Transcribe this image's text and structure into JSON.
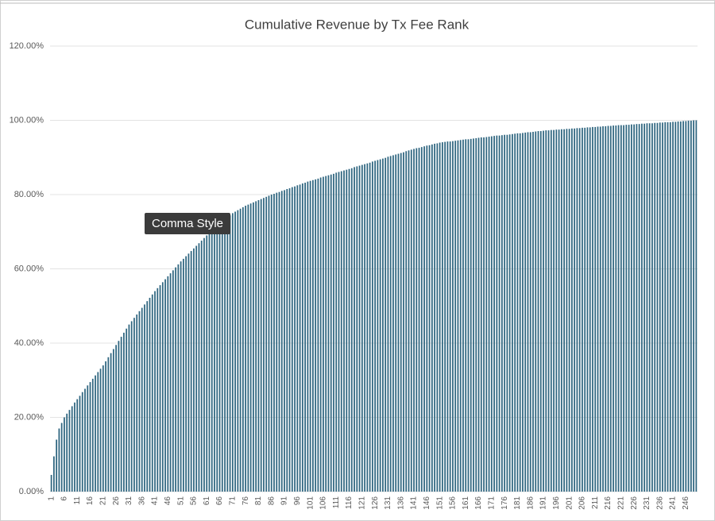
{
  "tooltip": "Comma Style",
  "chart_data": {
    "type": "bar",
    "title": "Cumulative Revenue by Tx Fee Rank",
    "color": "#2f6680",
    "grid": true,
    "ylim": [
      0,
      120
    ],
    "yticks": [
      {
        "value": 0,
        "label": "0.00%"
      },
      {
        "value": 20,
        "label": "20.00%"
      },
      {
        "value": 40,
        "label": "40.00%"
      },
      {
        "value": 60,
        "label": "60.00%"
      },
      {
        "value": 80,
        "label": "80.00%"
      },
      {
        "value": 100,
        "label": "100.00%"
      },
      {
        "value": 120,
        "label": "120.00%"
      }
    ],
    "categories": [
      1,
      null,
      null,
      null,
      null,
      6,
      null,
      null,
      null,
      null,
      11,
      null,
      null,
      null,
      null,
      16,
      null,
      null,
      null,
      null,
      21,
      null,
      null,
      null,
      null,
      26,
      null,
      null,
      null,
      null,
      31,
      null,
      null,
      null,
      null,
      36,
      null,
      null,
      null,
      null,
      41,
      null,
      null,
      null,
      null,
      46,
      null,
      null,
      null,
      null,
      51,
      null,
      null,
      null,
      null,
      56,
      null,
      null,
      null,
      null,
      61,
      null,
      null,
      null,
      null,
      66,
      null,
      null,
      null,
      null,
      71,
      null,
      null,
      null,
      null,
      76,
      null,
      null,
      null,
      null,
      81,
      null,
      null,
      null,
      null,
      86,
      null,
      null,
      null,
      null,
      91,
      null,
      null,
      null,
      null,
      96,
      null,
      null,
      null,
      null,
      101,
      null,
      null,
      null,
      null,
      106,
      null,
      null,
      null,
      null,
      111,
      null,
      null,
      null,
      null,
      116,
      null,
      null,
      null,
      null,
      121,
      null,
      null,
      null,
      null,
      126,
      null,
      null,
      null,
      null,
      131,
      null,
      null,
      null,
      null,
      136,
      null,
      null,
      null,
      null,
      141,
      null,
      null,
      null,
      null,
      146,
      null,
      null,
      null,
      null,
      151,
      null,
      null,
      null,
      null,
      156,
      null,
      null,
      null,
      null,
      161,
      null,
      null,
      null,
      null,
      166,
      null,
      null,
      null,
      null,
      171,
      null,
      null,
      null,
      null,
      176,
      null,
      null,
      null,
      null,
      181,
      null,
      null,
      null,
      null,
      186,
      null,
      null,
      null,
      null,
      191,
      null,
      null,
      null,
      null,
      196,
      null,
      null,
      null,
      null,
      201,
      null,
      null,
      null,
      null,
      206,
      null,
      null,
      null,
      null,
      211,
      null,
      null,
      null,
      null,
      216,
      null,
      null,
      null,
      null,
      221,
      null,
      null,
      null,
      null,
      226,
      null,
      null,
      null,
      null,
      231,
      null,
      null,
      null,
      null,
      236,
      null,
      null,
      null,
      null,
      241,
      null,
      null,
      null,
      null,
      246,
      null,
      null,
      null,
      null
    ],
    "values": [
      4.5,
      9.5,
      14.0,
      17.0,
      18.5,
      20.0,
      21.0,
      22.0,
      23.0,
      24.0,
      24.9,
      25.8,
      26.8,
      27.7,
      28.6,
      29.5,
      30.4,
      31.3,
      32.2,
      33.1,
      34.0,
      35.1,
      36.2,
      37.3,
      38.4,
      39.5,
      40.6,
      41.7,
      42.8,
      43.9,
      45.0,
      45.9,
      46.8,
      47.7,
      48.6,
      49.5,
      50.4,
      51.3,
      52.2,
      53.1,
      54.0,
      54.8,
      55.6,
      56.4,
      57.2,
      58.0,
      58.8,
      59.6,
      60.4,
      61.2,
      62.0,
      62.7,
      63.4,
      64.1,
      64.8,
      65.5,
      66.2,
      66.9,
      67.6,
      68.3,
      69.0,
      69.6,
      70.2,
      70.8,
      71.4,
      72.0,
      72.6,
      73.2,
      73.8,
      74.4,
      75.0,
      75.4,
      75.8,
      76.2,
      76.6,
      77.0,
      77.3,
      77.6,
      77.9,
      78.2,
      78.5,
      78.8,
      79.1,
      79.4,
      79.7,
      80.0,
      80.2,
      80.5,
      80.7,
      81.0,
      81.2,
      81.5,
      81.7,
      82.0,
      82.2,
      82.5,
      82.7,
      83.0,
      83.2,
      83.5,
      83.7,
      83.9,
      84.1,
      84.3,
      84.6,
      84.8,
      85.0,
      85.2,
      85.4,
      85.6,
      85.9,
      86.1,
      86.3,
      86.5,
      86.7,
      86.9,
      87.1,
      87.4,
      87.6,
      87.8,
      88.0,
      88.2,
      88.4,
      88.6,
      88.9,
      89.1,
      89.3,
      89.5,
      89.7,
      89.9,
      90.2,
      90.4,
      90.6,
      90.8,
      91.0,
      91.2,
      91.4,
      91.7,
      91.9,
      92.1,
      92.3,
      92.5,
      92.6,
      92.8,
      93.0,
      93.2,
      93.3,
      93.5,
      93.7,
      93.8,
      94.0,
      94.1,
      94.2,
      94.3,
      94.3,
      94.4,
      94.5,
      94.6,
      94.7,
      94.8,
      94.9,
      94.9,
      95.0,
      95.1,
      95.2,
      95.3,
      95.4,
      95.4,
      95.5,
      95.6,
      95.7,
      95.8,
      95.9,
      95.9,
      96.0,
      96.1,
      96.1,
      96.2,
      96.3,
      96.4,
      96.5,
      96.5,
      96.6,
      96.7,
      96.8,
      96.8,
      96.9,
      97.0,
      97.1,
      97.1,
      97.2,
      97.3,
      97.3,
      97.4,
      97.4,
      97.5,
      97.5,
      97.6,
      97.6,
      97.7,
      97.7,
      97.8,
      97.8,
      97.9,
      97.9,
      98.0,
      98.0,
      98.1,
      98.1,
      98.2,
      98.2,
      98.3,
      98.3,
      98.4,
      98.4,
      98.5,
      98.5,
      98.6,
      98.6,
      98.7,
      98.7,
      98.7,
      98.8,
      98.8,
      98.9,
      98.9,
      99.0,
      99.0,
      99.1,
      99.1,
      99.2,
      99.2,
      99.2,
      99.3,
      99.3,
      99.4,
      99.4,
      99.5,
      99.5,
      99.5,
      99.6,
      99.6,
      99.7,
      99.7,
      99.8,
      99.8,
      99.9,
      99.9,
      100.0,
      100.0
    ]
  }
}
